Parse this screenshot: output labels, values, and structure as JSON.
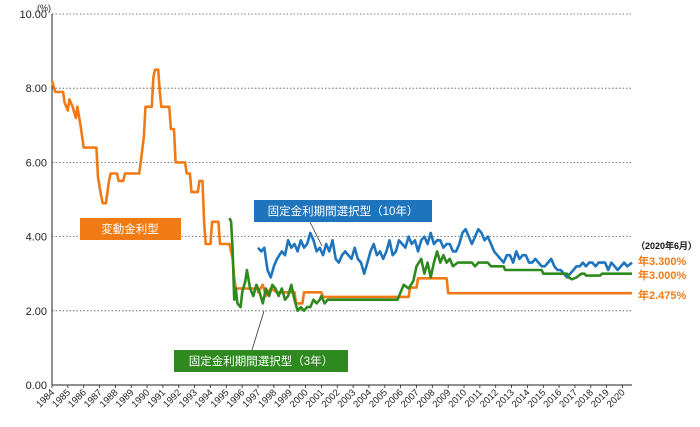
{
  "chart_data": {
    "type": "line",
    "unit_label": "(%)",
    "ylim": [
      0,
      10
    ],
    "y_ticks": [
      "0.00",
      "2.00",
      "4.00",
      "6.00",
      "8.00",
      "10.00"
    ],
    "y_tick_values": [
      0,
      2,
      4,
      6,
      8,
      10
    ],
    "x_range": [
      1984,
      2020.6
    ],
    "x_ticks": [
      "1984",
      "1985",
      "1986",
      "1987",
      "1988",
      "1989",
      "1990",
      "1991",
      "1992",
      "1993",
      "1994",
      "1995",
      "1996",
      "1997",
      "1998",
      "1999",
      "2000",
      "2001",
      "2002",
      "2003",
      "2004",
      "2005",
      "2006",
      "2007",
      "2008",
      "2009",
      "2010",
      "2011",
      "2012",
      "2013",
      "2014",
      "2015",
      "2016",
      "2017",
      "2018",
      "2019",
      "2020"
    ],
    "grid": "horizontal-dotted",
    "note": "（2020年6月）",
    "series": [
      {
        "name": "変動金利型",
        "color": "#f07a14",
        "end_label": "年2.475%",
        "points": [
          [
            1984.0,
            8.2
          ],
          [
            1984.2,
            7.9
          ],
          [
            1984.7,
            7.9
          ],
          [
            1984.8,
            7.6
          ],
          [
            1985.0,
            7.4
          ],
          [
            1985.1,
            7.7
          ],
          [
            1985.3,
            7.5
          ],
          [
            1985.5,
            7.2
          ],
          [
            1985.6,
            7.5
          ],
          [
            1985.8,
            7.0
          ],
          [
            1986.0,
            6.4
          ],
          [
            1986.8,
            6.4
          ],
          [
            1986.9,
            5.6
          ],
          [
            1987.1,
            5.1
          ],
          [
            1987.2,
            4.9
          ],
          [
            1987.4,
            4.9
          ],
          [
            1987.6,
            5.5
          ],
          [
            1987.7,
            5.7
          ],
          [
            1988.1,
            5.7
          ],
          [
            1988.2,
            5.5
          ],
          [
            1988.5,
            5.5
          ],
          [
            1988.6,
            5.7
          ],
          [
            1989.5,
            5.7
          ],
          [
            1989.6,
            6.0
          ],
          [
            1989.8,
            6.7
          ],
          [
            1989.9,
            7.5
          ],
          [
            1990.3,
            7.5
          ],
          [
            1990.4,
            8.3
          ],
          [
            1990.5,
            8.5
          ],
          [
            1990.7,
            8.5
          ],
          [
            1990.8,
            7.9
          ],
          [
            1990.9,
            7.5
          ],
          [
            1991.4,
            7.5
          ],
          [
            1991.5,
            6.9
          ],
          [
            1991.7,
            6.9
          ],
          [
            1991.8,
            6.0
          ],
          [
            1992.4,
            6.0
          ],
          [
            1992.5,
            5.7
          ],
          [
            1992.7,
            5.7
          ],
          [
            1992.8,
            5.2
          ],
          [
            1993.2,
            5.2
          ],
          [
            1993.3,
            5.5
          ],
          [
            1993.5,
            5.5
          ],
          [
            1993.6,
            4.4
          ],
          [
            1993.7,
            3.8
          ],
          [
            1994.0,
            3.8
          ],
          [
            1994.1,
            4.4
          ],
          [
            1994.5,
            4.4
          ],
          [
            1994.6,
            3.8
          ],
          [
            1995.2,
            3.8
          ],
          [
            1995.4,
            3.4
          ],
          [
            1995.5,
            2.9
          ],
          [
            1995.6,
            2.6
          ],
          [
            1997.0,
            2.6
          ],
          [
            1997.0,
            2.5
          ],
          [
            1997.3,
            2.7
          ],
          [
            1997.5,
            2.4
          ],
          [
            1997.8,
            2.6
          ],
          [
            1998.2,
            2.5
          ],
          [
            1999.3,
            2.5
          ],
          [
            1999.4,
            2.2
          ],
          [
            1999.8,
            2.2
          ],
          [
            1999.9,
            2.5
          ],
          [
            2001.0,
            2.5
          ],
          [
            2001.1,
            2.375
          ],
          [
            2006.5,
            2.375
          ],
          [
            2006.6,
            2.625
          ],
          [
            2007.0,
            2.625
          ],
          [
            2007.1,
            2.875
          ],
          [
            2008.9,
            2.875
          ],
          [
            2009.0,
            2.475
          ],
          [
            2020.6,
            2.475
          ]
        ]
      },
      {
        "name": "固定金利期間選択型（10年）",
        "color": "#1e74bd",
        "end_label": "年3.300%",
        "points": [
          [
            1997.0,
            3.7
          ],
          [
            1997.2,
            3.6
          ],
          [
            1997.4,
            3.7
          ],
          [
            1997.6,
            3.1
          ],
          [
            1997.8,
            2.9
          ],
          [
            1998.0,
            3.2
          ],
          [
            1998.2,
            3.4
          ],
          [
            1998.5,
            3.6
          ],
          [
            1998.7,
            3.5
          ],
          [
            1998.9,
            3.9
          ],
          [
            1999.1,
            3.7
          ],
          [
            1999.3,
            3.8
          ],
          [
            1999.5,
            3.6
          ],
          [
            1999.7,
            3.9
          ],
          [
            1999.9,
            3.7
          ],
          [
            2000.1,
            3.8
          ],
          [
            2000.3,
            4.1
          ],
          [
            2000.5,
            3.9
          ],
          [
            2000.7,
            3.6
          ],
          [
            2000.9,
            3.7
          ],
          [
            2001.1,
            3.5
          ],
          [
            2001.3,
            3.8
          ],
          [
            2001.5,
            3.6
          ],
          [
            2001.7,
            3.9
          ],
          [
            2001.9,
            3.4
          ],
          [
            2002.1,
            3.3
          ],
          [
            2002.3,
            3.5
          ],
          [
            2002.5,
            3.6
          ],
          [
            2002.7,
            3.5
          ],
          [
            2002.9,
            3.4
          ],
          [
            2003.1,
            3.7
          ],
          [
            2003.3,
            3.4
          ],
          [
            2003.5,
            3.3
          ],
          [
            2003.7,
            3.0
          ],
          [
            2003.9,
            3.3
          ],
          [
            2004.1,
            3.6
          ],
          [
            2004.3,
            3.8
          ],
          [
            2004.5,
            3.5
          ],
          [
            2004.7,
            3.6
          ],
          [
            2004.9,
            3.4
          ],
          [
            2005.1,
            3.6
          ],
          [
            2005.3,
            3.9
          ],
          [
            2005.5,
            3.5
          ],
          [
            2005.7,
            3.6
          ],
          [
            2005.9,
            3.9
          ],
          [
            2006.1,
            3.8
          ],
          [
            2006.3,
            3.7
          ],
          [
            2006.5,
            4.0
          ],
          [
            2006.7,
            3.8
          ],
          [
            2006.9,
            3.9
          ],
          [
            2007.1,
            3.6
          ],
          [
            2007.3,
            3.9
          ],
          [
            2007.5,
            4.0
          ],
          [
            2007.7,
            3.8
          ],
          [
            2007.9,
            4.1
          ],
          [
            2008.1,
            3.8
          ],
          [
            2008.3,
            3.9
          ],
          [
            2008.5,
            3.9
          ],
          [
            2008.7,
            3.7
          ],
          [
            2008.9,
            3.8
          ],
          [
            2009.1,
            3.8
          ],
          [
            2009.3,
            3.6
          ],
          [
            2009.5,
            3.6
          ],
          [
            2009.7,
            3.8
          ],
          [
            2009.9,
            4.1
          ],
          [
            2010.1,
            4.2
          ],
          [
            2010.3,
            4.0
          ],
          [
            2010.5,
            3.8
          ],
          [
            2010.7,
            4.0
          ],
          [
            2010.9,
            4.2
          ],
          [
            2011.1,
            4.1
          ],
          [
            2011.3,
            3.9
          ],
          [
            2011.5,
            4.0
          ],
          [
            2011.7,
            3.8
          ],
          [
            2011.9,
            3.6
          ],
          [
            2012.1,
            3.5
          ],
          [
            2012.3,
            3.4
          ],
          [
            2012.5,
            3.3
          ],
          [
            2012.7,
            3.5
          ],
          [
            2012.9,
            3.5
          ],
          [
            2013.1,
            3.3
          ],
          [
            2013.3,
            3.6
          ],
          [
            2013.5,
            3.4
          ],
          [
            2013.7,
            3.5
          ],
          [
            2013.9,
            3.5
          ],
          [
            2014.1,
            3.3
          ],
          [
            2014.3,
            3.3
          ],
          [
            2014.5,
            3.4
          ],
          [
            2014.7,
            3.3
          ],
          [
            2014.9,
            3.2
          ],
          [
            2015.1,
            3.2
          ],
          [
            2015.3,
            3.3
          ],
          [
            2015.5,
            3.4
          ],
          [
            2015.7,
            3.2
          ],
          [
            2015.9,
            3.1
          ],
          [
            2016.1,
            3.1
          ],
          [
            2016.3,
            3.0
          ],
          [
            2016.5,
            2.9
          ],
          [
            2016.7,
            3.0
          ],
          [
            2016.9,
            3.1
          ],
          [
            2017.1,
            3.2
          ],
          [
            2017.3,
            3.2
          ],
          [
            2017.5,
            3.3
          ],
          [
            2017.7,
            3.2
          ],
          [
            2017.9,
            3.3
          ],
          [
            2018.1,
            3.3
          ],
          [
            2018.3,
            3.2
          ],
          [
            2018.5,
            3.3
          ],
          [
            2018.7,
            3.3
          ],
          [
            2018.9,
            3.3
          ],
          [
            2019.1,
            3.1
          ],
          [
            2019.3,
            3.3
          ],
          [
            2019.5,
            3.2
          ],
          [
            2019.7,
            3.1
          ],
          [
            2019.9,
            3.2
          ],
          [
            2020.1,
            3.3
          ],
          [
            2020.3,
            3.2
          ],
          [
            2020.6,
            3.3
          ]
        ]
      },
      {
        "name": "固定金利期間選択型（3年）",
        "color": "#2e8a1e",
        "end_label": "年3.000%",
        "points": [
          [
            1995.2,
            4.5
          ],
          [
            1995.3,
            4.4
          ],
          [
            1995.4,
            3.6
          ],
          [
            1995.5,
            2.3
          ],
          [
            1995.6,
            2.6
          ],
          [
            1995.7,
            2.2
          ],
          [
            1995.9,
            2.1
          ],
          [
            1996.0,
            2.5
          ],
          [
            1996.2,
            2.8
          ],
          [
            1996.3,
            3.1
          ],
          [
            1996.5,
            2.6
          ],
          [
            1996.7,
            2.4
          ],
          [
            1996.9,
            2.7
          ],
          [
            1997.1,
            2.5
          ],
          [
            1997.3,
            2.2
          ],
          [
            1997.5,
            2.6
          ],
          [
            1997.7,
            2.4
          ],
          [
            1997.9,
            2.7
          ],
          [
            1998.1,
            2.6
          ],
          [
            1998.3,
            2.4
          ],
          [
            1998.5,
            2.6
          ],
          [
            1998.7,
            2.3
          ],
          [
            1998.9,
            2.4
          ],
          [
            1999.1,
            2.7
          ],
          [
            1999.3,
            2.3
          ],
          [
            1999.5,
            2.0
          ],
          [
            1999.7,
            2.1
          ],
          [
            1999.9,
            2.0
          ],
          [
            2000.1,
            2.1
          ],
          [
            2000.3,
            2.1
          ],
          [
            2000.5,
            2.3
          ],
          [
            2000.7,
            2.2
          ],
          [
            2000.9,
            2.3
          ],
          [
            2001.0,
            2.4
          ],
          [
            2001.2,
            2.2
          ],
          [
            2001.4,
            2.3
          ],
          [
            2001.6,
            2.3
          ],
          [
            2005.8,
            2.3
          ],
          [
            2006.0,
            2.5
          ],
          [
            2006.2,
            2.7
          ],
          [
            2006.5,
            2.6
          ],
          [
            2006.8,
            2.8
          ],
          [
            2007.0,
            3.2
          ],
          [
            2007.3,
            3.4
          ],
          [
            2007.5,
            3.0
          ],
          [
            2007.7,
            3.3
          ],
          [
            2007.9,
            2.9
          ],
          [
            2008.1,
            3.3
          ],
          [
            2008.3,
            3.6
          ],
          [
            2008.5,
            3.3
          ],
          [
            2008.7,
            3.5
          ],
          [
            2008.9,
            3.3
          ],
          [
            2009.1,
            3.4
          ],
          [
            2009.3,
            3.2
          ],
          [
            2009.6,
            3.3
          ],
          [
            2010.5,
            3.3
          ],
          [
            2010.7,
            3.2
          ],
          [
            2010.9,
            3.3
          ],
          [
            2011.5,
            3.3
          ],
          [
            2011.7,
            3.2
          ],
          [
            2012.5,
            3.2
          ],
          [
            2012.6,
            3.1
          ],
          [
            2014.9,
            3.1
          ],
          [
            2015.0,
            3.0
          ],
          [
            2016.5,
            3.0
          ],
          [
            2016.6,
            2.9
          ],
          [
            2016.8,
            2.85
          ],
          [
            2017.1,
            2.9
          ],
          [
            2017.4,
            3.0
          ],
          [
            2017.6,
            3.0
          ],
          [
            2017.7,
            2.95
          ],
          [
            2018.6,
            2.95
          ],
          [
            2018.7,
            3.0
          ],
          [
            2020.6,
            3.0
          ]
        ]
      }
    ],
    "annotations": [
      {
        "text": "変動金利型",
        "color": "#f07a14"
      },
      {
        "text": "固定金利期間選択型（10年）",
        "color": "#1e74bd"
      },
      {
        "text": "固定金利期間選択型（3年）",
        "color": "#2e8a1e"
      }
    ]
  }
}
